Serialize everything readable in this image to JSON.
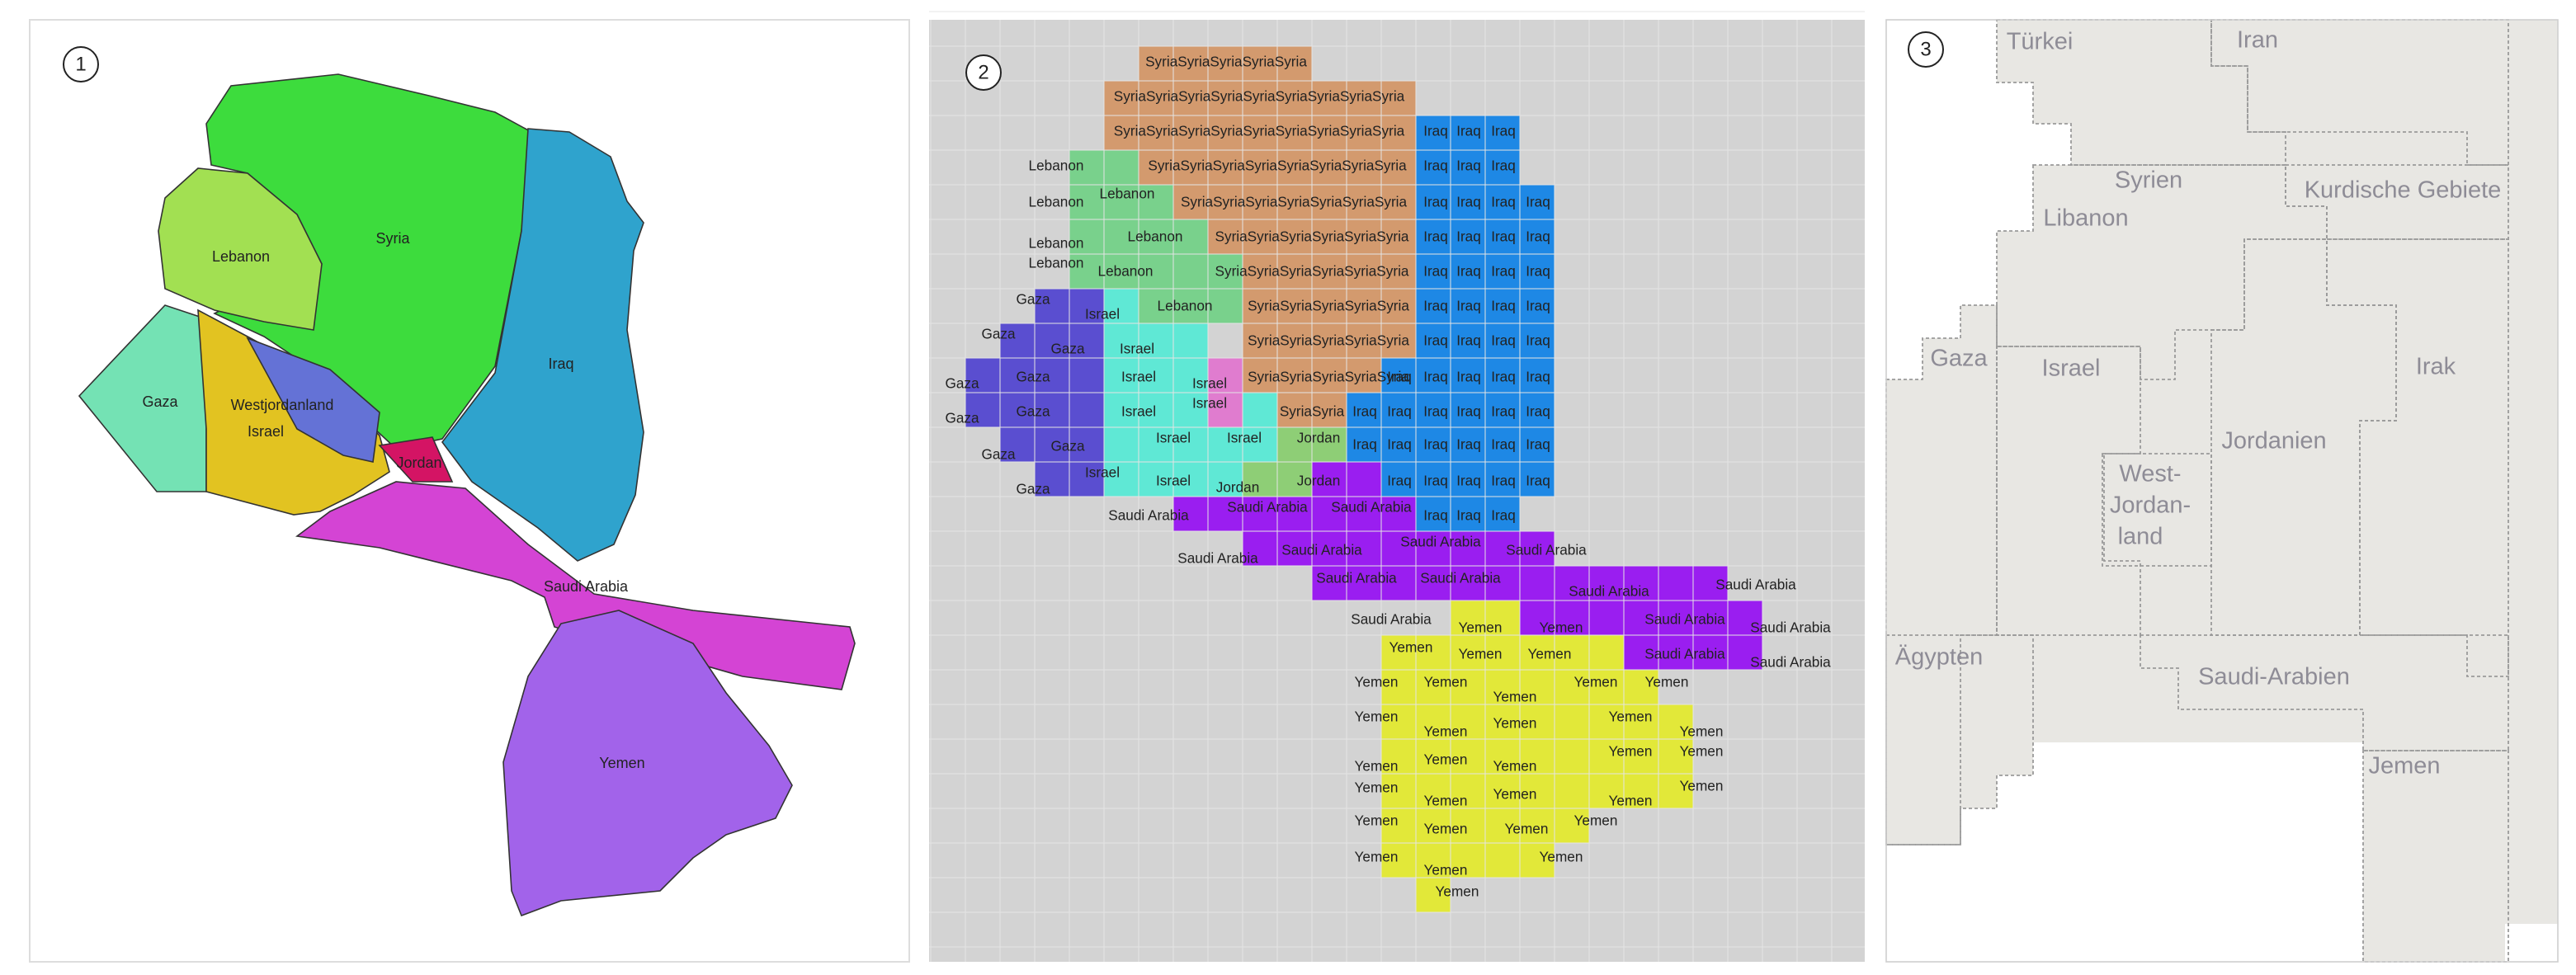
{
  "panel1": {
    "number": "1",
    "labels": [
      "Lebanon",
      "Syria",
      "Iraq",
      "Gaza",
      "Westjordanland",
      "Israel",
      "Jordan",
      "Saudi Arabia",
      "Yemen"
    ]
  },
  "panel2": {
    "number": "2",
    "syria": [
      "SyriaSyriaSyriaSyriaSyria",
      "SyriaSyriaSyriaSyriaSyriaSyriaSyriaSyriaSyria",
      "SyriaSyriaSyriaSyriaSyriaSyriaSyriaSyriaSyria",
      "SyriaSyriaSyriaSyriaSyriaSyriaSyriaSyria",
      "SyriaSyriaSyriaSyriaSyriaSyriaSyria",
      "SyriaSyriaSyriaSyriaSyriaSyria",
      "SyriaSyriaSyriaSyriaSyriaSyria",
      "SyriaSyriaSyriaSyriaSyria",
      "SyriaSyriaSyriaSyriaSyria",
      "SyriaSyriaSyriaSyriaSyria",
      "SyriaSyria"
    ],
    "lebanon": [
      "Lebanon",
      "Lebanon",
      "Lebanon",
      "Lebanon",
      "Lebanon",
      "Lebanon",
      "Lebanon",
      "Lebanon"
    ],
    "gaza": [
      "Gaza",
      "Gaza",
      "Gaza",
      "Gaza",
      "Gaza",
      "Gaza",
      "Gaza",
      "Gaza",
      "Gaza",
      "Gaza"
    ],
    "israel": [
      "Israel",
      "Israel",
      "Israel",
      "Israel",
      "Israel",
      "Israel",
      "Israel",
      "Israel",
      "Israel",
      "Israel"
    ],
    "jordan": [
      "Jordan",
      "Jordan",
      "Jordan"
    ],
    "iraq": [
      "Iraq",
      "Iraq",
      "Iraq",
      "Iraq",
      "Iraq",
      "Iraq",
      "Iraq",
      "Iraq",
      "Iraq",
      "Iraq",
      "Iraq",
      "Iraq",
      "Iraq",
      "Iraq",
      "Iraq",
      "Iraq",
      "Iraq",
      "Iraq",
      "Iraq",
      "Iraq",
      "Iraq",
      "Iraq",
      "Iraq",
      "Iraq",
      "Iraq",
      "Iraq",
      "Iraq",
      "Iraq",
      "Iraq",
      "Iraq",
      "Iraq",
      "Iraq",
      "Iraq",
      "Iraq",
      "Iraq",
      "Iraq",
      "Iraq",
      "Iraq",
      "Iraq",
      "Iraq",
      "Iraq",
      "Iraq",
      "Iraq",
      "Iraq",
      "Iraq",
      "Iraq",
      "Iraq",
      "Iraq",
      "Iraq",
      "Iraq",
      "Iraq"
    ],
    "saudi": [
      "Saudi Arabia",
      "Saudi Arabia",
      "Saudi Arabia",
      "Saudi Arabia",
      "Saudi Arabia",
      "Saudi Arabia",
      "Saudi Arabia",
      "Saudi Arabia",
      "Saudi Arabia",
      "Saudi Arabia",
      "Saudi Arabia",
      "Saudi Arabia",
      "Saudi Arabia",
      "Saudi Arabia",
      "Saudi Arabia",
      "Saudi Arabia"
    ],
    "yemen": [
      "Yemen",
      "Yemen",
      "Yemen",
      "Yemen",
      "Yemen",
      "Yemen",
      "Yemen",
      "Yemen",
      "Yemen",
      "Yemen",
      "Yemen",
      "Yemen",
      "Yemen",
      "Yemen",
      "Yemen",
      "Yemen",
      "Yemen",
      "Yemen",
      "Yemen",
      "Yemen",
      "Yemen",
      "Yemen",
      "Yemen",
      "Yemen",
      "Yemen",
      "Yemen",
      "Yemen",
      "Yemen",
      "Yemen",
      "Yemen",
      "Yemen",
      "Yemen",
      "Yemen"
    ]
  },
  "panel3": {
    "number": "3",
    "labels": [
      "Türkei",
      "Iran",
      "Syrien",
      "Kurdische Gebiete",
      "Libanon",
      "Gaza",
      "Israel",
      "Irak",
      "Jordanien",
      "West-",
      "Jordan-",
      "land",
      "Ägypten",
      "Saudi-Arabien",
      "Jemen"
    ]
  }
}
